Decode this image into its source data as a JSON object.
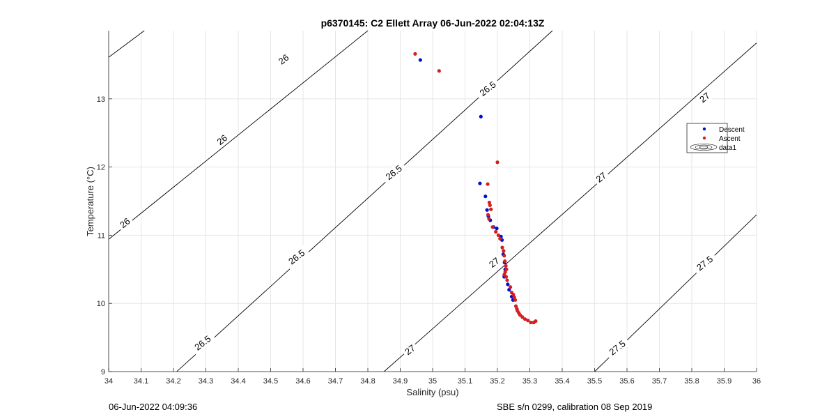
{
  "footer": {
    "timestamp": "06-Jun-2022 04:09:36",
    "calibration": "SBE s/n 0299, calibration 08 Sep 2019"
  },
  "colors": {
    "descent": "#0010c8",
    "ascent": "#d21f1f",
    "grid": "#e6e6e6",
    "contour": "#000000"
  },
  "chart_data": {
    "type": "scatter",
    "title": "p6370145: C2 Ellett Array 06-Jun-2022 02:04:13Z",
    "xlabel": "Salinity (psu)",
    "ylabel": "Temperature (°C)",
    "xlim": [
      34,
      36
    ],
    "ylim": [
      9,
      14
    ],
    "grid": true,
    "x_ticks": [
      34,
      34.1,
      34.2,
      34.3,
      34.4,
      34.5,
      34.6,
      34.7,
      34.8,
      34.9,
      35,
      35.1,
      35.2,
      35.3,
      35.4,
      35.5,
      35.6,
      35.7,
      35.8,
      35.9,
      36
    ],
    "x_tick_labels": [
      "34",
      "34.1",
      "34.2",
      "34.3",
      "34.4",
      "34.5",
      "34.6",
      "34.7",
      "34.8",
      "34.9",
      "35",
      "35.1",
      "35.2",
      "35.3",
      "35.4",
      "35.5",
      "35.6",
      "35.7",
      "35.8",
      "35.9",
      "36"
    ],
    "y_ticks": [
      9,
      10,
      11,
      12,
      13
    ],
    "y_tick_labels": [
      "9",
      "10",
      "11",
      "12",
      "13"
    ],
    "legend": {
      "placement": "right",
      "entries": [
        "Descent",
        "Ascent",
        "data1"
      ]
    },
    "series": [
      {
        "name": "Descent",
        "x": [
          34.962,
          35.149,
          35.146,
          35.163,
          35.168,
          35.172,
          35.178,
          35.188,
          35.198,
          35.211,
          35.214,
          35.218,
          35.222,
          35.224,
          35.221,
          35.232,
          35.236,
          35.244,
          35.248
        ],
        "y": [
          13.57,
          12.74,
          11.76,
          11.57,
          11.37,
          11.28,
          11.22,
          11.12,
          11.1,
          10.98,
          10.93,
          10.72,
          10.6,
          10.5,
          10.39,
          10.28,
          10.2,
          10.1,
          10.05
        ]
      },
      {
        "name": "Ascent",
        "x": [
          34.946,
          35.02,
          35.2,
          35.17,
          35.175,
          35.177,
          35.18,
          35.171,
          35.174,
          35.185,
          35.195,
          35.203,
          35.208,
          35.215,
          35.219,
          35.221,
          35.223,
          35.226,
          35.228,
          35.224,
          35.221,
          35.227,
          35.23,
          35.24,
          35.244,
          35.249,
          35.252,
          35.255,
          35.257,
          35.26,
          35.262,
          35.266,
          35.27,
          35.277,
          35.285,
          35.294,
          35.303,
          35.312,
          35.318
        ],
        "y": [
          13.66,
          13.41,
          12.07,
          11.75,
          11.48,
          11.44,
          11.38,
          11.3,
          11.24,
          11.12,
          11.05,
          11.0,
          10.95,
          10.82,
          10.77,
          10.7,
          10.62,
          10.55,
          10.5,
          10.46,
          10.42,
          10.39,
          10.34,
          10.24,
          10.16,
          10.13,
          10.09,
          10.05,
          9.96,
          9.92,
          9.89,
          9.86,
          9.83,
          9.8,
          9.77,
          9.75,
          9.72,
          9.72,
          9.74
        ]
      }
    ],
    "contours": [
      {
        "level": "26",
        "x": [
          34.0,
          34.11
        ],
        "y": [
          13.61,
          14.0
        ]
      },
      {
        "level": "26",
        "x": [
          34.0,
          34.8
        ],
        "y": [
          10.94,
          14.0
        ]
      },
      {
        "level": "26.5",
        "x": [
          34.21,
          35.37
        ],
        "y": [
          9.0,
          14.0
        ]
      },
      {
        "level": "27",
        "x": [
          34.85,
          36.0
        ],
        "y": [
          9.0,
          13.82
        ]
      },
      {
        "level": "27.5",
        "x": [
          35.5,
          36.0
        ],
        "y": [
          9.0,
          11.3
        ]
      }
    ],
    "contour_labels": [
      {
        "text": "26",
        "x": 34.54,
        "y": 13.58,
        "angle": -38
      },
      {
        "text": "26",
        "x": 34.35,
        "y": 12.4,
        "angle": -38
      },
      {
        "text": "26",
        "x": 34.05,
        "y": 11.18,
        "angle": -38
      },
      {
        "text": "26.5",
        "x": 35.17,
        "y": 13.15,
        "angle": -38
      },
      {
        "text": "26.5",
        "x": 34.88,
        "y": 11.92,
        "angle": -38
      },
      {
        "text": "26.5",
        "x": 34.58,
        "y": 10.68,
        "angle": -38
      },
      {
        "text": "26.5",
        "x": 34.29,
        "y": 9.42,
        "angle": -38
      },
      {
        "text": "27",
        "x": 35.84,
        "y": 13.02,
        "angle": -38
      },
      {
        "text": "27",
        "x": 35.52,
        "y": 11.85,
        "angle": -38
      },
      {
        "text": "27",
        "x": 35.19,
        "y": 10.6,
        "angle": -38
      },
      {
        "text": "27",
        "x": 34.93,
        "y": 9.32,
        "angle": -38
      },
      {
        "text": "27.5",
        "x": 35.84,
        "y": 10.59,
        "angle": -38
      },
      {
        "text": "27.5",
        "x": 35.57,
        "y": 9.35,
        "angle": -38
      }
    ]
  }
}
